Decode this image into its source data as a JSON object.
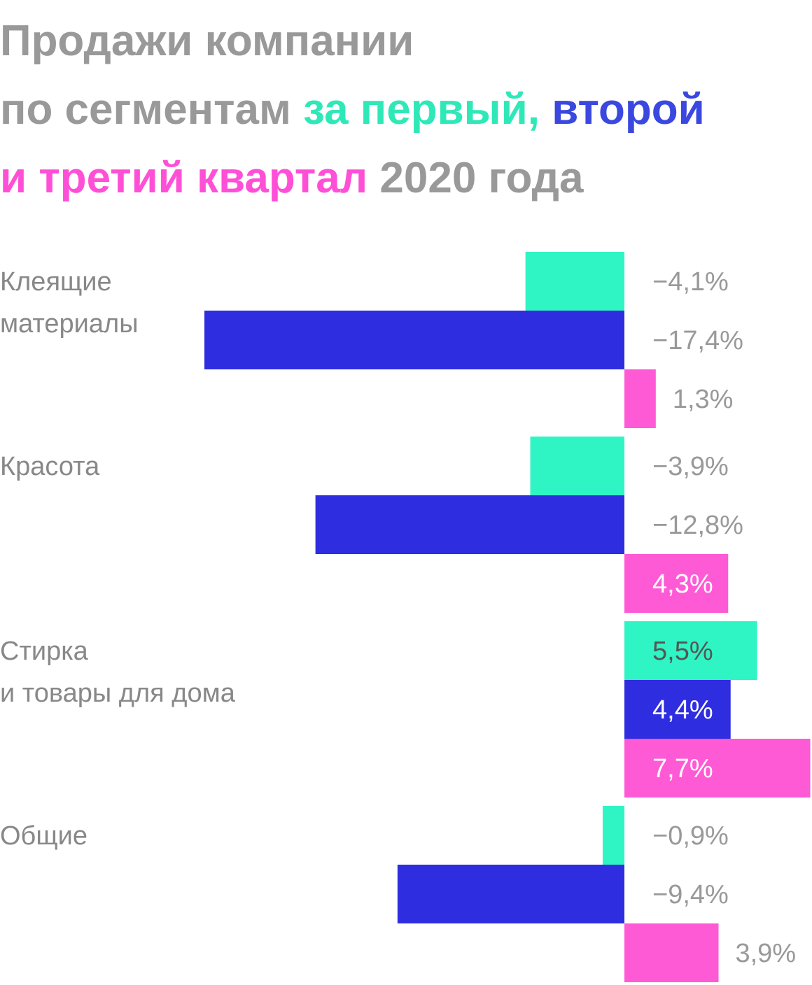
{
  "title_parts": [
    {
      "text": "Продажи компании",
      "color": "#999999",
      "break": true
    },
    {
      "text": "по сегментам ",
      "color": "#999999"
    },
    {
      "text": "за первый",
      "color": "#2fe8b8"
    },
    {
      "text": ", ",
      "color": "#2fe8b8"
    },
    {
      "text": "второй",
      "color": "#3a48e0",
      "break": true
    },
    {
      "text": "и третий квартал",
      "color": "#ff4fd6"
    },
    {
      "text": " 2020 года",
      "color": "#999999"
    }
  ],
  "chart_data": {
    "type": "bar",
    "orientation": "horizontal",
    "title": "Продажи компании по сегментам за первый, второй и третий квартал 2020 года",
    "categories": [
      [
        "Клеящие",
        "материалы"
      ],
      [
        "Красота"
      ],
      [
        "Стирка",
        "и товары для дома"
      ],
      [
        "Общие"
      ]
    ],
    "series": [
      {
        "color": "#2ff5c4",
        "values": [
          -4.1,
          -3.9,
          5.5,
          -0.9
        ],
        "labels": [
          "−4,1%",
          "−3,9%",
          "5,5%",
          "−0,9%"
        ]
      },
      {
        "color": "#2e2de0",
        "values": [
          -17.4,
          -12.8,
          4.4,
          -9.4
        ],
        "labels": [
          "−17,4%",
          "−12,8%",
          "4,4%",
          "−9,4%"
        ]
      },
      {
        "color": "#ff5ad5",
        "values": [
          1.3,
          4.3,
          7.7,
          3.9
        ],
        "labels": [
          "1,3%",
          "4,3%",
          "7,7%",
          "3,9%"
        ]
      }
    ],
    "xlim": [
      -25.6,
      7.7
    ],
    "grid": false,
    "legend": "none"
  }
}
